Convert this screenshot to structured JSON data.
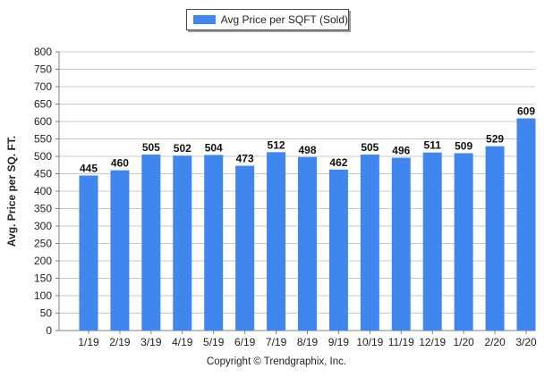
{
  "colors": {
    "bar": "#3f86ee",
    "grid": "#c8c8c8",
    "axis": "#808080"
  },
  "footer": {
    "copyright": "Copyright © Trendgraphix, Inc."
  },
  "chart_data": {
    "type": "bar",
    "title": "",
    "xlabel": "",
    "ylabel": "Avg. Price per SQ. FT.",
    "legend": {
      "position": "top-center",
      "entries": [
        "Avg Price per SQFT (Sold)"
      ]
    },
    "grid": true,
    "ylim": [
      0,
      800
    ],
    "yticks": [
      0,
      50,
      100,
      150,
      200,
      250,
      300,
      350,
      400,
      450,
      500,
      550,
      600,
      650,
      700,
      750,
      800
    ],
    "categories": [
      "1/19",
      "2/19",
      "3/19",
      "4/19",
      "5/19",
      "6/19",
      "7/19",
      "8/19",
      "9/19",
      "10/19",
      "11/19",
      "12/19",
      "1/20",
      "2/20",
      "3/20"
    ],
    "series": [
      {
        "name": "Avg Price per SQFT (Sold)",
        "values": [
          445,
          460,
          505,
          502,
          504,
          473,
          512,
          498,
          462,
          505,
          496,
          511,
          509,
          529,
          609
        ]
      }
    ]
  }
}
